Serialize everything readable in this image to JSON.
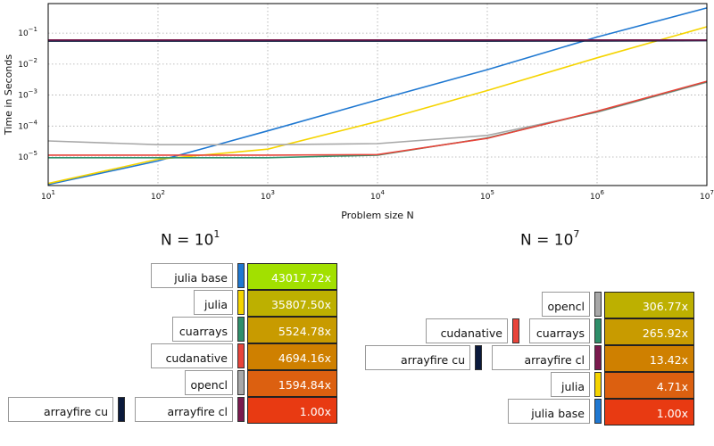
{
  "colors": {
    "julia base": "#1f78d1",
    "julia": "#f5d400",
    "cuarrays": "#2f8f6a",
    "cudanative": "#e8443a",
    "opencl": "#a8a8a8",
    "arrayfire cu": "#0b1a3c",
    "arrayfire cl": "#7a1a4e"
  },
  "chart_data": {
    "type": "line",
    "xlabel": "Problem size N",
    "ylabel": "Time in Seconds",
    "xscale": "log",
    "yscale": "log",
    "xlim": [
      10,
      10000000
    ],
    "ylim": [
      1.2e-06,
      0.9
    ],
    "grid": true,
    "x_ticks": [
      {
        "base": "10",
        "exp": "1"
      },
      {
        "base": "10",
        "exp": "2"
      },
      {
        "base": "10",
        "exp": "3"
      },
      {
        "base": "10",
        "exp": "4"
      },
      {
        "base": "10",
        "exp": "5"
      },
      {
        "base": "10",
        "exp": "6"
      },
      {
        "base": "10",
        "exp": "7"
      }
    ],
    "x_tick_values": [
      10,
      100,
      1000,
      10000,
      100000,
      1000000,
      10000000
    ],
    "y_ticks": [
      {
        "base": "10",
        "exp": "−5"
      },
      {
        "base": "10",
        "exp": "−4"
      },
      {
        "base": "10",
        "exp": "−3"
      },
      {
        "base": "10",
        "exp": "−2"
      },
      {
        "base": "10",
        "exp": "−1"
      }
    ],
    "y_tick_values": [
      1e-05,
      0.0001,
      0.001,
      0.01,
      0.1
    ],
    "x": [
      10,
      100,
      1000,
      10000,
      100000,
      1000000,
      10000000
    ],
    "series": [
      {
        "name": "julia base",
        "values": [
          1.3e-06,
          7.5e-06,
          7e-05,
          0.0007,
          0.0066,
          0.075,
          0.65
        ]
      },
      {
        "name": "julia",
        "values": [
          1.4e-06,
          8.5e-06,
          1.8e-05,
          0.00014,
          0.0014,
          0.016,
          0.16
        ]
      },
      {
        "name": "opencl",
        "values": [
          3.3e-05,
          2.5e-05,
          2.5e-05,
          2.7e-05,
          5e-05,
          0.00028,
          0.0026
        ]
      },
      {
        "name": "cuarrays",
        "values": [
          9.5e-06,
          9.5e-06,
          9.5e-06,
          1.15e-05,
          4.1e-05,
          0.00029,
          0.0027
        ]
      },
      {
        "name": "cudanative",
        "values": [
          1.15e-05,
          1.15e-05,
          1.15e-05,
          1.2e-05,
          4e-05,
          0.0003,
          0.0028
        ]
      },
      {
        "name": "arrayfire cu",
        "values": [
          0.055,
          0.055,
          0.055,
          0.055,
          0.055,
          0.056,
          0.057
        ]
      },
      {
        "name": "arrayfire cl",
        "values": [
          0.06,
          0.06,
          0.06,
          0.06,
          0.06,
          0.06,
          0.06
        ]
      }
    ]
  },
  "panel_left": {
    "title_base": "N = 10",
    "title_exp": "1",
    "rows": [
      {
        "labels": [
          "julia base"
        ],
        "value": "43017.72x"
      },
      {
        "labels": [
          "julia"
        ],
        "value": "35807.50x"
      },
      {
        "labels": [
          "cuarrays"
        ],
        "value": "5524.78x"
      },
      {
        "labels": [
          "cudanative"
        ],
        "value": "4694.16x"
      },
      {
        "labels": [
          "opencl"
        ],
        "value": "1594.84x"
      },
      {
        "labels": [
          "arrayfire cu",
          "arrayfire cl"
        ],
        "value": "1.00x"
      }
    ]
  },
  "panel_right": {
    "title_base": "N = 10",
    "title_exp": "7",
    "rows": [
      {
        "labels": [
          "opencl"
        ],
        "value": "306.77x"
      },
      {
        "labels": [
          "cudanative",
          "cuarrays"
        ],
        "value": "265.92x"
      },
      {
        "labels": [
          "arrayfire cu",
          "arrayfire cl"
        ],
        "value": "13.42x"
      },
      {
        "labels": [
          "julia"
        ],
        "value": "4.71x"
      },
      {
        "labels": [
          "julia base"
        ],
        "value": "1.00x"
      }
    ]
  },
  "speedup_colors": [
    "#a2e000",
    "#bdb000",
    "#c89b00",
    "#cf8000",
    "#dc6010",
    "#e83a12"
  ]
}
